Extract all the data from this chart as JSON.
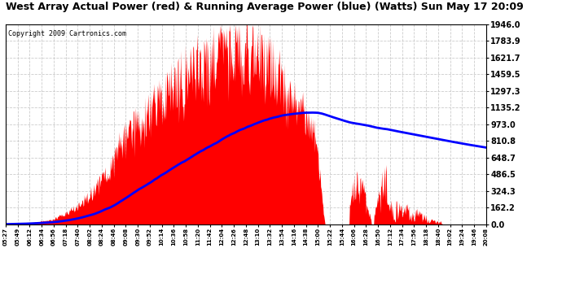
{
  "title": "West Array Actual Power (red) & Running Average Power (blue) (Watts) Sun May 17 20:09",
  "copyright": "Copyright 2009 Cartronics.com",
  "y_max": 1946.0,
  "y_ticks": [
    0.0,
    162.2,
    324.3,
    486.5,
    648.7,
    810.8,
    973.0,
    1135.2,
    1297.3,
    1459.5,
    1621.7,
    1783.9,
    1946.0
  ],
  "x_labels": [
    "05:27",
    "05:49",
    "06:12",
    "06:34",
    "06:56",
    "07:18",
    "07:40",
    "08:02",
    "08:24",
    "08:46",
    "09:08",
    "09:30",
    "09:52",
    "10:14",
    "10:36",
    "10:58",
    "11:20",
    "11:42",
    "12:04",
    "12:26",
    "12:48",
    "13:10",
    "13:32",
    "13:54",
    "14:16",
    "14:38",
    "15:00",
    "15:22",
    "15:44",
    "16:06",
    "16:28",
    "16:50",
    "17:12",
    "17:34",
    "17:56",
    "18:18",
    "18:40",
    "19:02",
    "19:24",
    "19:46",
    "20:08"
  ],
  "background_color": "#ffffff",
  "actual_color": "#ff0000",
  "avg_color": "#0000ff",
  "grid_color": "#cccccc",
  "title_fontsize": 9,
  "copyright_fontsize": 6
}
